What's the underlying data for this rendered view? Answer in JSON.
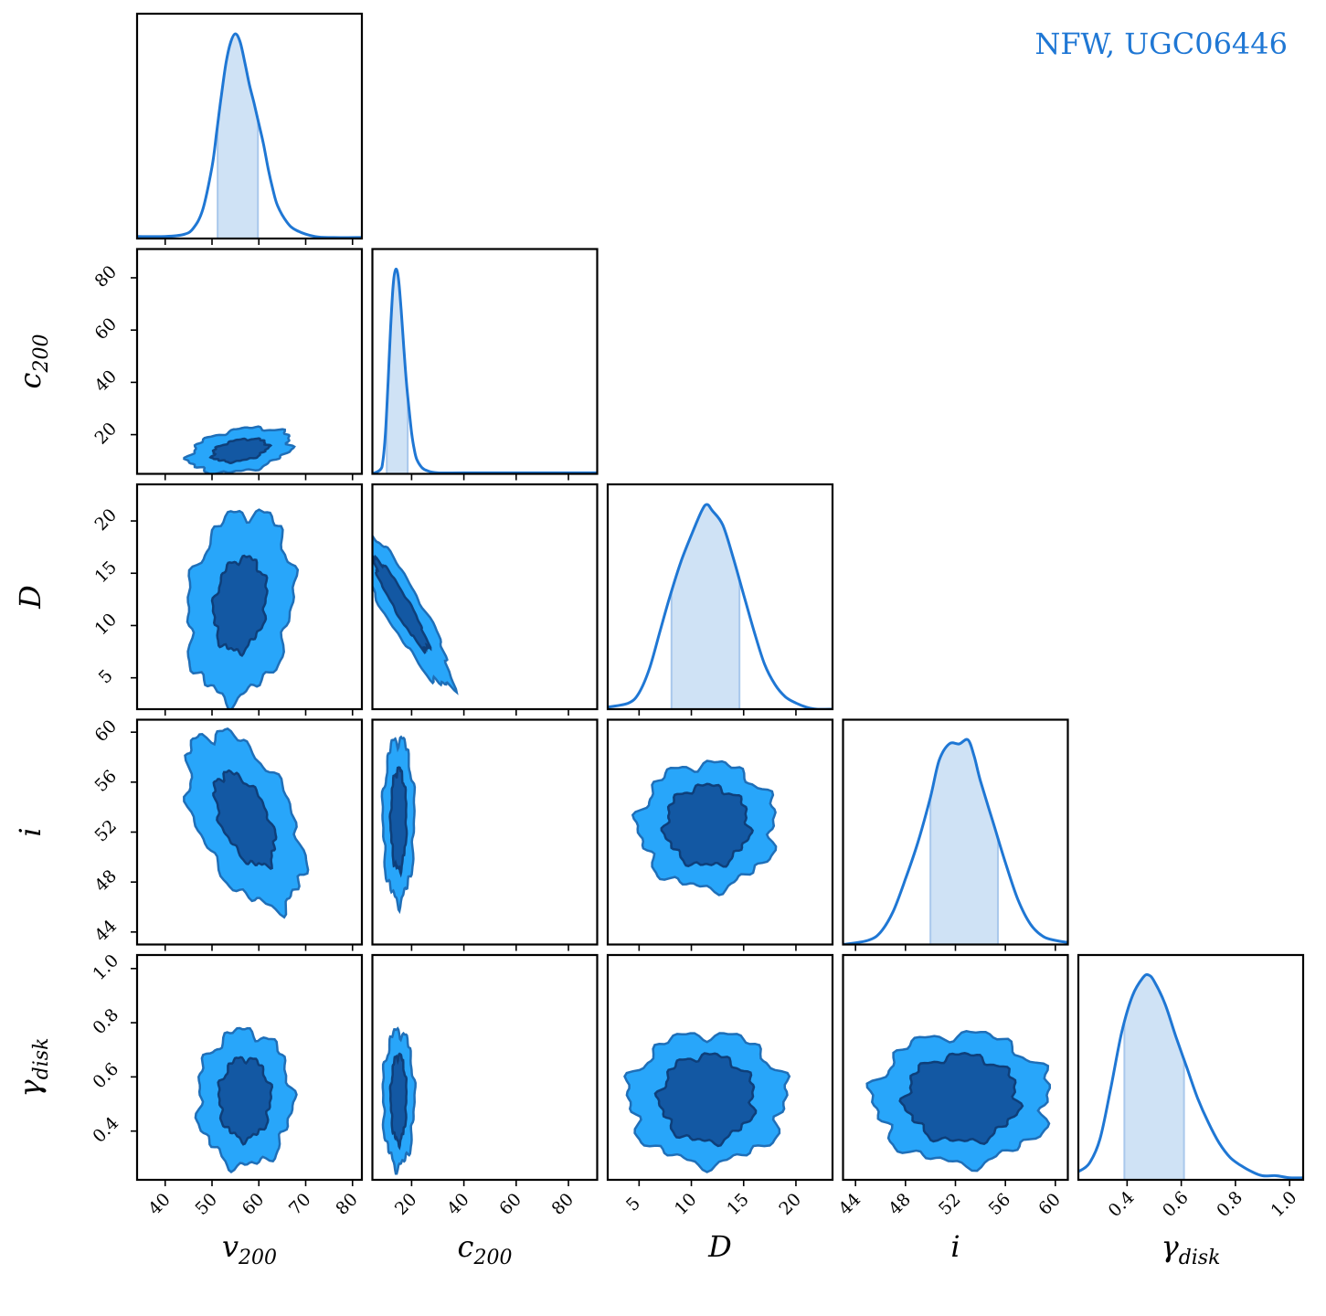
{
  "legend": {
    "label": "NFW, UGC06446",
    "color": "#1f77d4"
  },
  "colors": {
    "line": "#1f77d4",
    "band": "#cfe2f5",
    "outer": "#28a6fa",
    "inner": "#1358a3",
    "edge": "#1f6fb8"
  },
  "chart_data": {
    "type": "corner",
    "parameters": [
      {
        "key": "v200",
        "label": "v200",
        "label_base": "v",
        "label_sub": "200",
        "range": [
          34,
          82
        ],
        "ticks": [
          40,
          50,
          60,
          70,
          80
        ],
        "tick_labels": [
          "40",
          "50",
          "60",
          "70",
          "80"
        ]
      },
      {
        "key": "c200",
        "label": "c200",
        "label_base": "c",
        "label_sub": "200",
        "range": [
          5,
          91
        ],
        "ticks": [
          20,
          40,
          60,
          80
        ],
        "tick_labels": [
          "20",
          "40",
          "60",
          "80"
        ]
      },
      {
        "key": "D",
        "label": "D",
        "label_base": "D",
        "label_sub": "",
        "range": [
          2,
          23.5
        ],
        "ticks": [
          5,
          10,
          15,
          20
        ],
        "tick_labels": [
          "5",
          "10",
          "15",
          "20"
        ]
      },
      {
        "key": "i",
        "label": "i",
        "label_base": "i",
        "label_sub": "",
        "range": [
          43,
          61
        ],
        "ticks": [
          44,
          48,
          52,
          56,
          60
        ],
        "tick_labels": [
          "44",
          "48",
          "52",
          "56",
          "60"
        ]
      },
      {
        "key": "gamma_disk",
        "label": "γdisk",
        "label_base": "γ",
        "label_sub": "disk",
        "range": [
          0.22,
          1.05
        ],
        "ticks": [
          0.4,
          0.6,
          0.8,
          1.0
        ],
        "tick_labels": [
          "0.4",
          "0.6",
          "0.8",
          "1.0"
        ]
      }
    ],
    "marginals": [
      {
        "x": [
          34,
          40,
          44,
          46,
          48,
          50,
          51,
          52,
          53,
          54,
          55,
          56,
          57,
          58,
          59,
          60,
          61,
          62,
          63,
          64,
          66,
          68,
          72,
          76,
          82
        ],
        "y": [
          0.01,
          0.01,
          0.02,
          0.05,
          0.14,
          0.35,
          0.52,
          0.7,
          0.86,
          0.96,
          1.0,
          0.96,
          0.86,
          0.75,
          0.66,
          0.56,
          0.46,
          0.34,
          0.24,
          0.16,
          0.08,
          0.04,
          0.01,
          0.005,
          0.005
        ],
        "band": [
          51.2,
          59.8
        ]
      },
      {
        "x": [
          5,
          8,
          9,
          10,
          11,
          12,
          13,
          14,
          15,
          16,
          17,
          18,
          19,
          20,
          21,
          22,
          24,
          26,
          30,
          40,
          60,
          91
        ],
        "y": [
          0.0,
          0.02,
          0.06,
          0.2,
          0.45,
          0.72,
          0.93,
          1.0,
          0.95,
          0.8,
          0.62,
          0.45,
          0.32,
          0.2,
          0.12,
          0.07,
          0.03,
          0.015,
          0.005,
          0.005,
          0.005,
          0.005
        ],
        "band": [
          10.5,
          18.5
        ]
      },
      {
        "x": [
          2,
          4,
          5,
          6,
          7,
          8,
          9,
          10,
          11,
          11.5,
          12,
          13,
          14,
          15,
          16,
          17,
          18,
          19,
          20,
          21,
          22,
          23.5
        ],
        "y": [
          0.01,
          0.03,
          0.08,
          0.2,
          0.38,
          0.56,
          0.72,
          0.85,
          0.97,
          1.0,
          0.97,
          0.9,
          0.74,
          0.56,
          0.38,
          0.22,
          0.12,
          0.06,
          0.03,
          0.01,
          0.0,
          0.0
        ],
        "band": [
          8.1,
          14.6
        ]
      },
      {
        "x": [
          43,
          45,
          46,
          47,
          48,
          49,
          50,
          50.7,
          51.5,
          52.3,
          53.0,
          53.5,
          54,
          55,
          56,
          57,
          58,
          59,
          60,
          61
        ],
        "y": [
          0.0,
          0.02,
          0.06,
          0.16,
          0.32,
          0.5,
          0.72,
          0.9,
          0.98,
          0.98,
          1.0,
          0.92,
          0.8,
          0.6,
          0.4,
          0.22,
          0.1,
          0.04,
          0.02,
          0.01
        ],
        "band": [
          50.0,
          55.4
        ]
      },
      {
        "x": [
          0.22,
          0.26,
          0.3,
          0.34,
          0.38,
          0.42,
          0.46,
          0.48,
          0.5,
          0.54,
          0.58,
          0.62,
          0.66,
          0.7,
          0.74,
          0.78,
          0.82,
          0.86,
          0.9,
          0.95,
          1.0,
          1.05
        ],
        "y": [
          0.04,
          0.08,
          0.2,
          0.45,
          0.72,
          0.9,
          0.99,
          1.0,
          0.97,
          0.86,
          0.7,
          0.55,
          0.4,
          0.28,
          0.18,
          0.11,
          0.07,
          0.04,
          0.02,
          0.02,
          0.01,
          0.01
        ],
        "band": [
          0.39,
          0.61
        ]
      }
    ],
    "joint": [
      {
        "x": "v200",
        "y": "c200",
        "center": [
          56,
          14
        ],
        "outer": [
          11,
          8
        ],
        "inner": [
          6,
          4
        ],
        "tilt_deg": -10
      },
      {
        "x": "v200",
        "y": "D",
        "center": [
          56,
          12
        ],
        "outer": [
          11,
          9
        ],
        "inner": [
          5.5,
          4.5
        ],
        "tilt_deg": 8
      },
      {
        "x": "v200",
        "y": "i",
        "center": [
          57,
          53
        ],
        "outer": [
          10,
          7.5
        ],
        "inner": [
          5,
          4
        ],
        "tilt_deg": -25
      },
      {
        "x": "v200",
        "y": "gamma_disk",
        "center": [
          57,
          0.52
        ],
        "outer": [
          10,
          0.25
        ],
        "inner": [
          5.5,
          0.15
        ],
        "tilt_deg": 0
      },
      {
        "x": "c200",
        "y": "D",
        "center": [
          16,
          12
        ],
        "outer": [
          7,
          9
        ],
        "inner": [
          3,
          5
        ],
        "tilt_deg": -30
      },
      {
        "x": "c200",
        "y": "i",
        "center": [
          15,
          53
        ],
        "outer": [
          6,
          6.5
        ],
        "inner": [
          3,
          4
        ],
        "tilt_deg": 0
      },
      {
        "x": "c200",
        "y": "gamma_disk",
        "center": [
          15,
          0.52
        ],
        "outer": [
          6,
          0.25
        ],
        "inner": [
          3,
          0.16
        ],
        "tilt_deg": 0
      },
      {
        "x": "D",
        "y": "i",
        "center": [
          11.5,
          52.5
        ],
        "outer": [
          6.5,
          5
        ],
        "inner": [
          4,
          3.2
        ],
        "tilt_deg": 0
      },
      {
        "x": "D",
        "y": "gamma_disk",
        "center": [
          11.5,
          0.52
        ],
        "outer": [
          7.5,
          0.24
        ],
        "inner": [
          4.5,
          0.16
        ],
        "tilt_deg": 0
      },
      {
        "x": "i",
        "y": "gamma_disk",
        "center": [
          52.5,
          0.52
        ],
        "outer": [
          7,
          0.24
        ],
        "inner": [
          4.5,
          0.16
        ],
        "tilt_deg": 0
      }
    ]
  }
}
